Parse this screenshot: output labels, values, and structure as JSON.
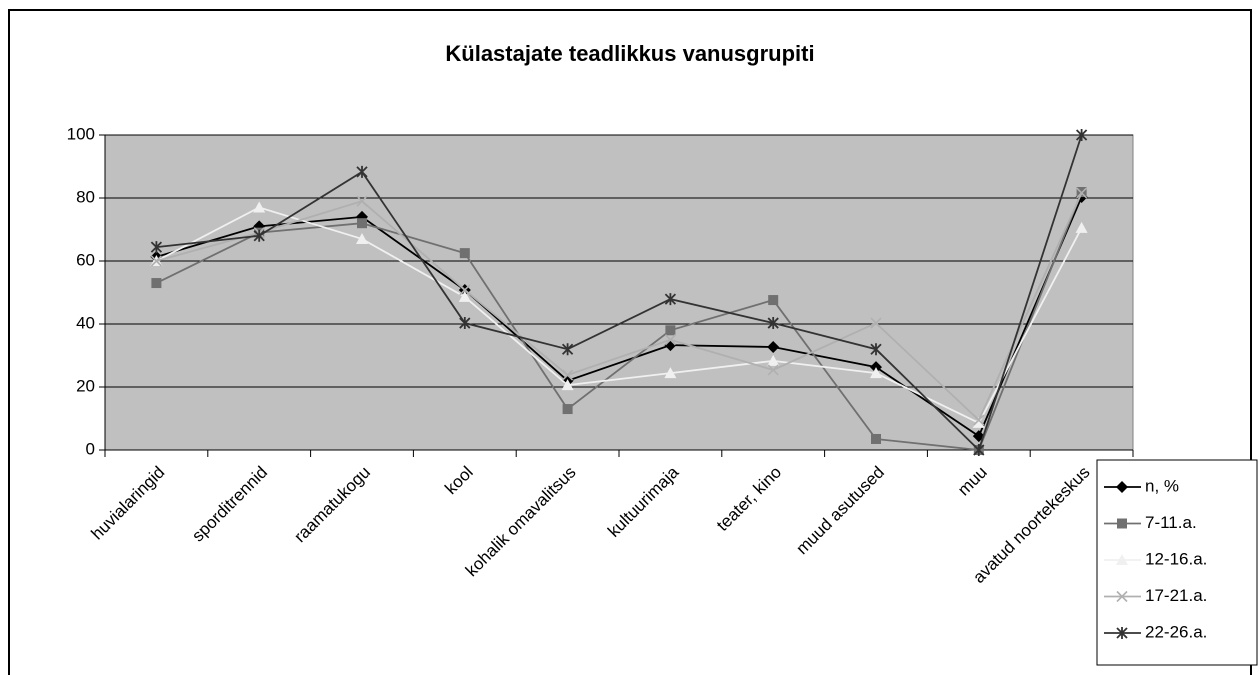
{
  "chart_data": {
    "type": "line",
    "title": "Külastajate teadlikkus vanusgrupiti",
    "categories": [
      "huvialaringid",
      "sporditrennid",
      "raamatukogu",
      "kool",
      "kohalik omavalitsus",
      "kultuurimaja",
      "teater, kino",
      "muud asutused",
      "muu",
      "avatud noortekeskus"
    ],
    "series": [
      {
        "name": "n, %",
        "color": "#000000",
        "marker": "diamond",
        "values": [
          61.3,
          71,
          74,
          50.8,
          22,
          33.3,
          32.7,
          26.3,
          4.4,
          80.3
        ]
      },
      {
        "name": "7-11.a.",
        "color": "#707070",
        "marker": "square",
        "values": [
          53,
          69,
          72,
          62.5,
          13,
          38,
          47.6,
          3.5,
          0,
          81.9
        ]
      },
      {
        "name": "12-16.a.",
        "color": "#f0f0f0",
        "marker": "triangle",
        "values": [
          60,
          77,
          67,
          48.6,
          20.6,
          24.4,
          28.3,
          24.4,
          8.6,
          70.5
        ]
      },
      {
        "name": "17-21.a.",
        "color": "#b0b0b0",
        "marker": "x",
        "values": [
          60,
          69,
          79,
          50.8,
          23.8,
          35,
          25.4,
          40.3,
          9.5,
          81.6
        ]
      },
      {
        "name": "22-26.a.",
        "color": "#333333",
        "marker": "star",
        "values": [
          64.4,
          68,
          88.3,
          40.3,
          32,
          47.9,
          40.3,
          32,
          0,
          100
        ]
      }
    ],
    "ylim": [
      0,
      100
    ],
    "yticks": [
      0,
      20,
      40,
      60,
      80,
      100
    ],
    "grid": true,
    "legend": "bottom-right",
    "plot_background": "#c0c0c0"
  }
}
